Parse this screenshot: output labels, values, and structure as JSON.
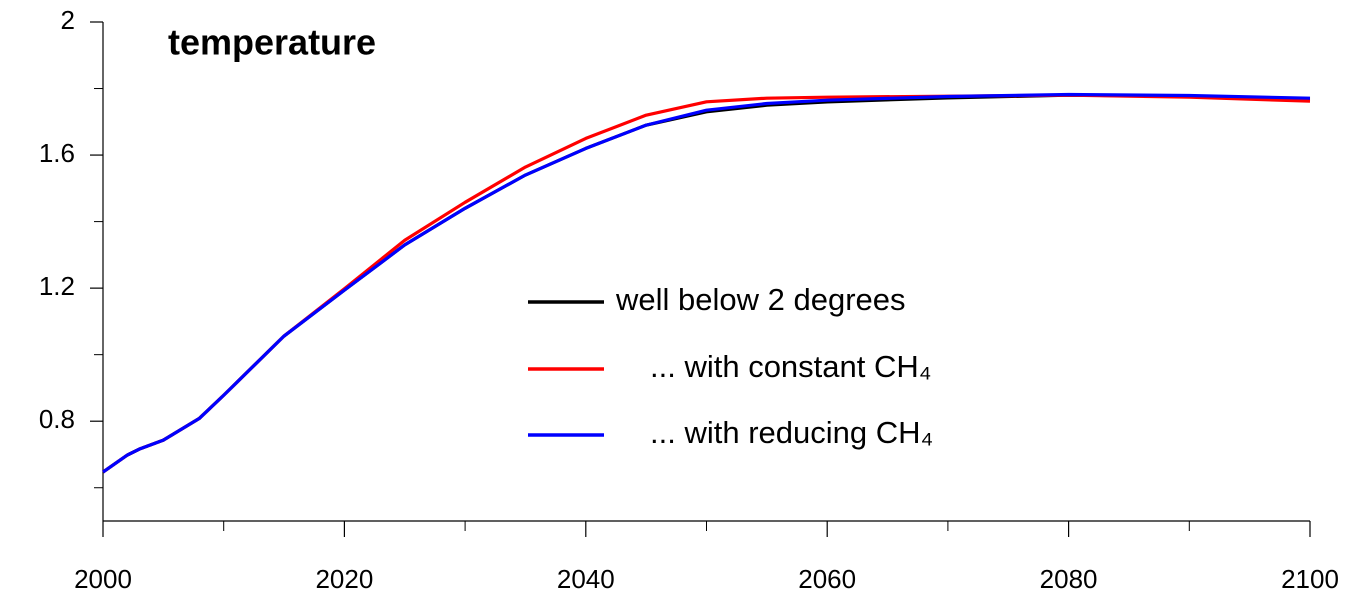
{
  "chart_data": {
    "type": "line",
    "title": "temperature",
    "x": [
      2000,
      2002,
      2003,
      2005,
      2008,
      2010,
      2015,
      2020,
      2025,
      2030,
      2035,
      2040,
      2045,
      2050,
      2055,
      2060,
      2070,
      2080,
      2090,
      2100
    ],
    "series": [
      {
        "name": "well below 2 degrees",
        "color": "#000000",
        "values": [
          0.647,
          0.698,
          0.716,
          0.743,
          0.809,
          0.878,
          1.056,
          1.194,
          1.33,
          1.44,
          1.54,
          1.62,
          1.69,
          1.73,
          1.75,
          1.76,
          1.772,
          1.78,
          1.777,
          1.768
        ]
      },
      {
        "name": "... with constant CH₄",
        "color": "#ff0000",
        "values": [
          0.647,
          0.698,
          0.716,
          0.743,
          0.809,
          0.878,
          1.056,
          1.198,
          1.344,
          1.458,
          1.564,
          1.65,
          1.72,
          1.76,
          1.771,
          1.774,
          1.777,
          1.78,
          1.774,
          1.762
        ]
      },
      {
        "name": "... with reducing CH₄",
        "color": "#0000ff",
        "values": [
          0.647,
          0.698,
          0.716,
          0.743,
          0.809,
          0.878,
          1.056,
          1.194,
          1.33,
          1.44,
          1.54,
          1.62,
          1.69,
          1.735,
          1.755,
          1.765,
          1.776,
          1.782,
          1.779,
          1.771
        ]
      }
    ],
    "xlim": [
      2000,
      2100
    ],
    "xticks": [
      2000,
      2020,
      2040,
      2060,
      2080,
      2100
    ],
    "xminorticks": [
      2010,
      2030,
      2050,
      2070,
      2090
    ],
    "ylim": [
      0.5,
      2
    ],
    "yticks": [
      0.8,
      1.2,
      1.6,
      2
    ],
    "yminorticks": [
      0.6,
      1.0,
      1.4,
      1.8
    ],
    "grid": false
  }
}
